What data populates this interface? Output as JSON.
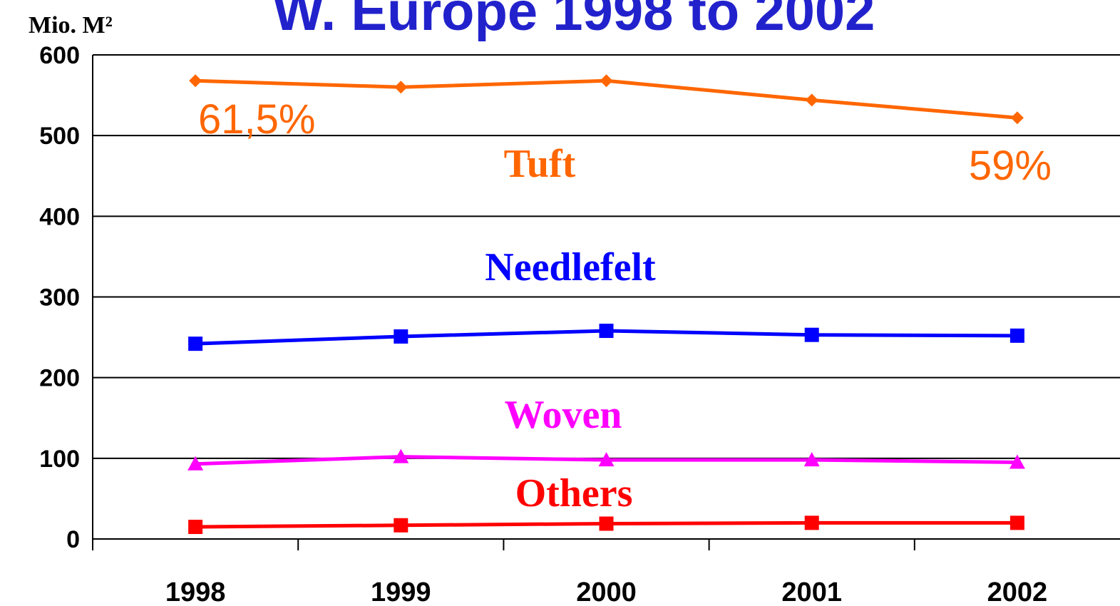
{
  "chart_data": {
    "type": "line",
    "title": "W. Europe 1998 to 2002",
    "y_axis_label": "Mio. M²",
    "categories": [
      "1998",
      "1999",
      "2000",
      "2001",
      "2002"
    ],
    "series": [
      {
        "name": "Tuft",
        "color": "#ff6600",
        "marker": "diamond",
        "values": [
          568,
          560,
          568,
          544,
          522
        ]
      },
      {
        "name": "Needlefelt",
        "color": "#0000ff",
        "marker": "square",
        "values": [
          242,
          251,
          258,
          253,
          252
        ]
      },
      {
        "name": "Woven",
        "color": "#ff00ff",
        "marker": "triangle",
        "values": [
          93,
          102,
          98,
          98,
          95
        ]
      },
      {
        "name": "Others",
        "color": "#ff0000",
        "marker": "square",
        "values": [
          15,
          17,
          19,
          20,
          20
        ]
      }
    ],
    "annotations": [
      {
        "text": "61,5%",
        "color": "#ff6600"
      },
      {
        "text": "59%",
        "color": "#ff6600"
      }
    ],
    "ylim": [
      0,
      600
    ],
    "yticks": [
      0,
      100,
      200,
      300,
      400,
      500,
      600
    ],
    "grid": true
  }
}
